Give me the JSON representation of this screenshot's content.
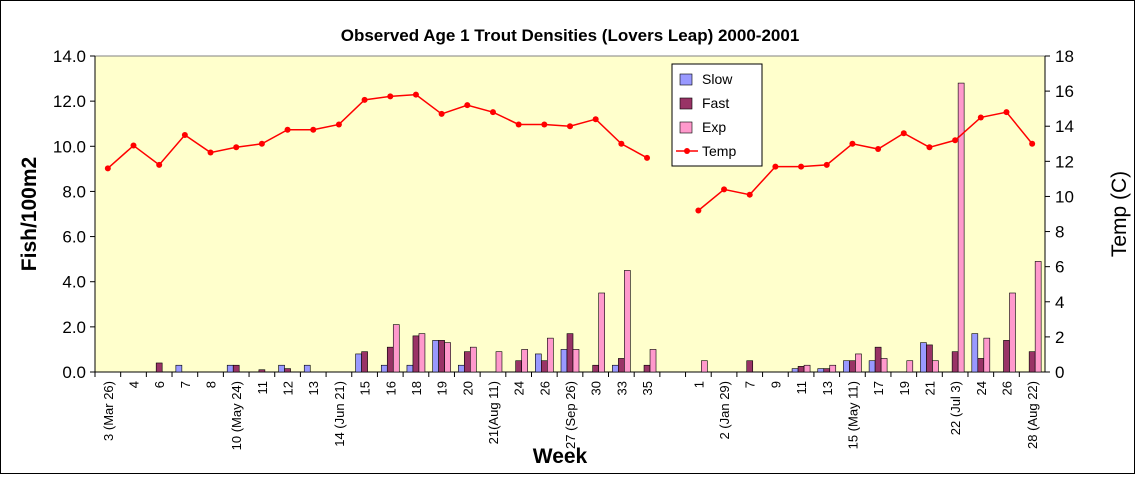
{
  "chart_data": {
    "type": "bar-line",
    "title": "Observed Age 1 Trout Densities (Lovers Leap) 2000-2001",
    "y_label": "Fish/100m2",
    "y2_label": "Temp (C)",
    "x_label": "Week",
    "categories": [
      "3 (Mar 26)",
      "4",
      "6",
      "7",
      "8",
      "10 (May 24)",
      "11",
      "12",
      "13",
      "14 (Jun 21)",
      "15",
      "16",
      "18",
      "19",
      "20",
      "21(Aug 11)",
      "24",
      "26",
      "27 (Sep 26)",
      "30",
      "33",
      "35",
      null,
      "1",
      "2 (Jan 29)",
      "7",
      "9",
      "11",
      "13",
      "15 (May 11)",
      "17",
      "19",
      "21",
      "22 (Jul 3)",
      "24",
      "26",
      "28 (Aug 22)"
    ],
    "series": [
      {
        "name": "Slow",
        "color": "#9999ff",
        "type": "bar",
        "values": [
          0,
          0,
          0,
          0.3,
          0,
          0.3,
          0,
          0.3,
          0.3,
          0,
          0.8,
          0.3,
          0.3,
          1.4,
          0.3,
          0,
          0,
          0.8,
          1.0,
          0,
          0.3,
          0,
          null,
          0,
          0,
          0,
          0,
          0.15,
          0.15,
          0.5,
          0.5,
          0,
          1.3,
          0,
          1.7,
          0,
          0
        ]
      },
      {
        "name": "Fast",
        "color": "#993366",
        "type": "bar",
        "values": [
          0,
          0,
          0.4,
          0,
          0,
          0.3,
          0.1,
          0.15,
          0,
          0,
          0.9,
          1.1,
          1.6,
          1.4,
          0.9,
          0,
          0.5,
          0.5,
          1.7,
          0.3,
          0.6,
          0.3,
          null,
          0,
          0,
          0.5,
          0,
          0.25,
          0.15,
          0.5,
          1.1,
          0,
          1.2,
          0.9,
          0.6,
          1.4,
          0.9
        ]
      },
      {
        "name": "Exp",
        "color": "#ff99cc",
        "type": "bar",
        "values": [
          0,
          0,
          0,
          0,
          0,
          0,
          0,
          0,
          0,
          0,
          0,
          2.1,
          1.7,
          1.3,
          1.1,
          0.9,
          1.0,
          1.5,
          1.0,
          3.5,
          4.5,
          1.0,
          null,
          0.5,
          0,
          0,
          0,
          0.3,
          0.3,
          0.8,
          0.6,
          0.5,
          0.5,
          12.8,
          1.5,
          3.5,
          4.9
        ]
      },
      {
        "name": "Temp",
        "color": "#ff0000",
        "type": "line",
        "axis": "y2",
        "values": [
          11.6,
          12.9,
          11.8,
          13.5,
          12.5,
          12.8,
          13.0,
          13.8,
          13.8,
          14.1,
          15.5,
          15.7,
          15.8,
          14.7,
          15.2,
          14.8,
          14.1,
          14.1,
          14.0,
          14.4,
          13.0,
          12.2,
          null,
          9.2,
          10.4,
          10.1,
          11.7,
          11.7,
          11.8,
          13.0,
          12.7,
          13.6,
          12.8,
          13.2,
          14.5,
          14.8,
          13.0
        ]
      }
    ],
    "ylim": [
      0,
      14
    ],
    "yticks": [
      {
        "value": 0,
        "label": "0.0"
      },
      {
        "value": 2,
        "label": "2.0"
      },
      {
        "value": 4,
        "label": "4.0"
      },
      {
        "value": 6,
        "label": "6.0"
      },
      {
        "value": 8,
        "label": "8.0"
      },
      {
        "value": 10,
        "label": "10.0"
      },
      {
        "value": 12,
        "label": "12.0"
      },
      {
        "value": 14,
        "label": "14.0"
      }
    ],
    "y2lim": [
      0,
      18
    ],
    "y2ticks": [
      0,
      2,
      4,
      6,
      8,
      10,
      12,
      14,
      16,
      18
    ]
  }
}
